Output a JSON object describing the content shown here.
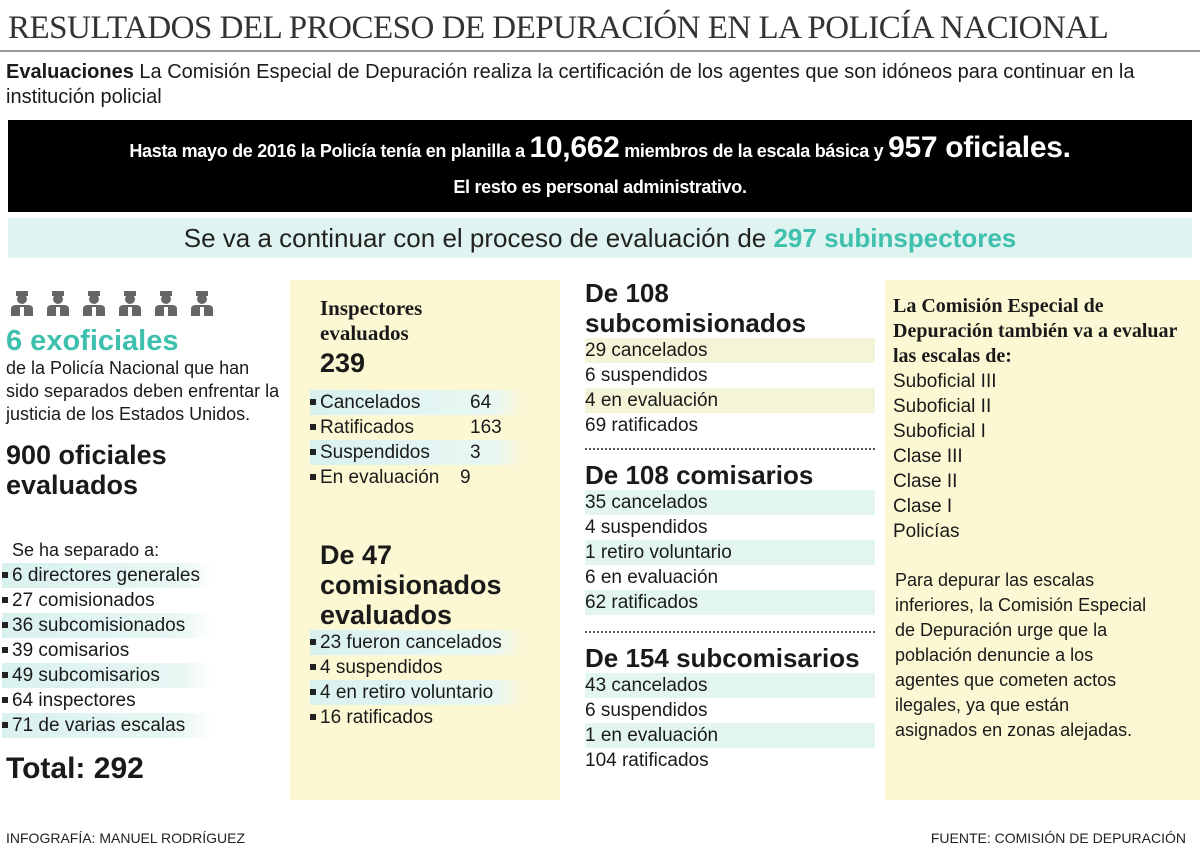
{
  "title": "RESULTADOS DEL PROCESO DE DEPURACIÓN EN LA POLICÍA NACIONAL",
  "intro": {
    "lead": "Evaluaciones",
    "text": " La Comisión Especial de Depuración realiza la certificación de los agentes que son idóneos para continuar en la institución policial"
  },
  "banner": {
    "pre": "Hasta mayo de 2016 la Policía tenía en planilla a ",
    "n1": "10,662",
    "mid": " miembros de la escala básica y ",
    "n2": "957 oficiales.",
    "line2": "El resto es personal administrativo."
  },
  "band": {
    "text": "Se va a continuar con el proceso de evaluación de ",
    "highlight": "297 subinspectores"
  },
  "colors": {
    "teal": "#3fc0ae",
    "yellow": "#fbf8d3",
    "cyan": "#dff4f0"
  },
  "col1": {
    "icon": "police-officer-icon",
    "ex_title": "6 exoficiales",
    "ex_text": "de la Policía Nacional que han sido separados deben enfrentar la justicia de los Estados Unidos.",
    "oficiales_title": "900 oficiales evaluados",
    "separado": "Se ha separado a:",
    "items": [
      "6 directores generales",
      "27 comisionados",
      "36 subcomisionados",
      "39 comisarios",
      "49 subcomisarios",
      "64 inspectores",
      "71 de varias escalas"
    ],
    "total": "Total: 292"
  },
  "col2": {
    "insp_title": "Inspectores evaluados",
    "insp_total": "239",
    "insp_items": [
      {
        "label": "Cancelados",
        "value": "64"
      },
      {
        "label": "Ratificados",
        "value": "163"
      },
      {
        "label": "Suspendidos",
        "value": "3"
      },
      {
        "label": "En evaluación",
        "value": "9"
      }
    ],
    "com_title": "De  47 comisionados evaluados",
    "com_items": [
      "23 fueron cancelados",
      "4 suspendidos",
      "4 en retiro voluntario",
      "16 ratificados"
    ]
  },
  "col3": {
    "groups": [
      {
        "title": "De 108 subcomisionados",
        "items": [
          "29 cancelados",
          "6 suspendidos",
          "4 en evaluación",
          "69 ratificados"
        ]
      },
      {
        "title": "De 108 comisarios",
        "items": [
          "35 cancelados",
          "4 suspendidos",
          "1 retiro voluntario",
          "6 en evaluación",
          "62 ratificados"
        ]
      },
      {
        "title": "De 154 subcomisarios",
        "items": [
          "43 cancelados",
          "6 suspendidos",
          "1 en evaluación",
          "104 ratificados"
        ]
      }
    ]
  },
  "col4": {
    "title": "La Comisión Especial de Depuración también va a evaluar las escalas de:",
    "escalas": [
      "Suboficial III",
      "Suboficial II",
      "Suboficial I",
      "Clase III",
      "Clase II",
      "Clase I",
      "Policías"
    ],
    "note": "Para depurar las escalas inferiores, la Comisión Especial de Depuración urge que la población denuncie a los agentes que cometen actos ilegales, ya que están asignados en zonas alejadas."
  },
  "footer": {
    "credit": "INFOGRAFÍA: MANUEL RODRÍGUEZ",
    "source": "FUENTE: COMISIÓN DE DEPURACIÓN"
  }
}
